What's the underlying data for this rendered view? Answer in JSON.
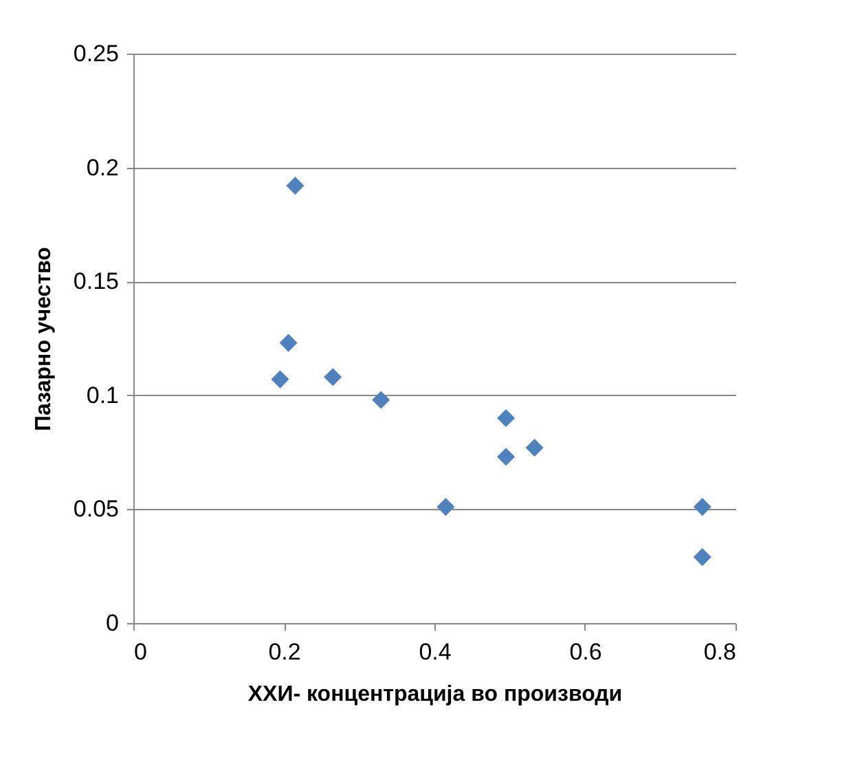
{
  "chart_data": {
    "type": "scatter",
    "xlabel": "ХХИ- концентрација  во производи",
    "ylabel": "Пазарно учество",
    "x": [
      0.215,
      0.206,
      0.195,
      0.265,
      0.329,
      0.415,
      0.495,
      0.495,
      0.533,
      0.756,
      0.756
    ],
    "series": [
      {
        "color": "#4f81bd",
        "values": [
          0.192,
          0.123,
          0.107,
          0.108,
          0.098,
          0.051,
          0.09,
          0.073,
          0.077,
          0.051,
          0.029
        ]
      }
    ],
    "xlim": [
      0,
      0.8
    ],
    "xticks": [
      0,
      0.2,
      0.4,
      0.6,
      0.8
    ],
    "ylim": [
      0,
      0.25
    ],
    "yticks": [
      0,
      0.05,
      0.1,
      0.15,
      0.2,
      0.25
    ],
    "grid": "y",
    "marker": "diamond",
    "legend": false
  }
}
